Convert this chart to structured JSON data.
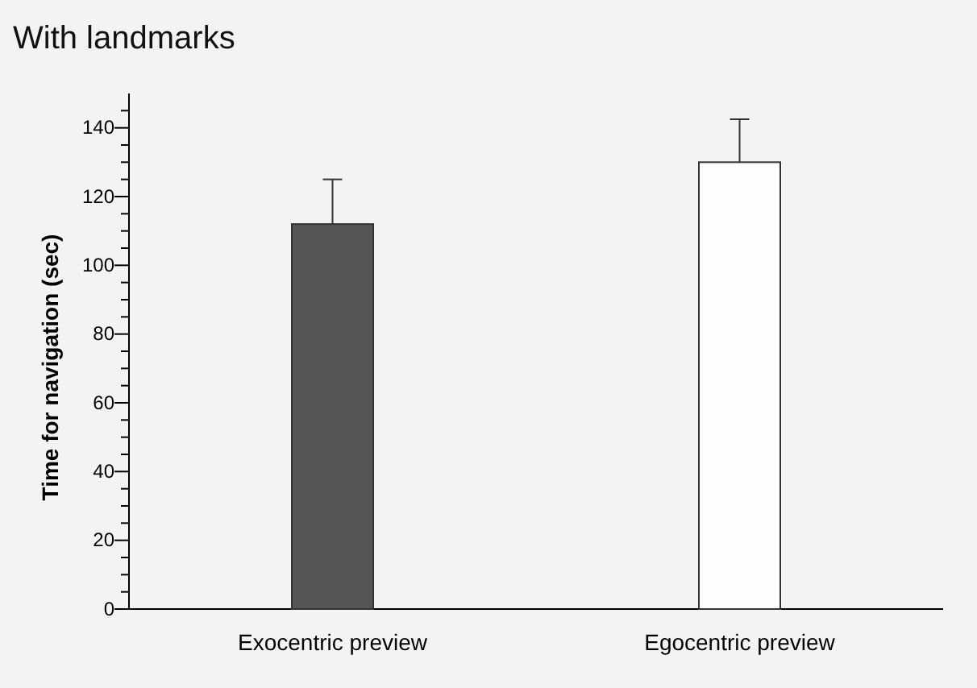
{
  "chart_data": {
    "type": "bar",
    "title": "With landmarks",
    "ylabel": "Time for navigation (sec)",
    "categories": [
      "Exocentric preview",
      "Egocentric preview"
    ],
    "values": [
      112,
      130
    ],
    "colors": [
      "#555555",
      "#fdfdfd"
    ],
    "errors": [
      [
        112,
        125
      ],
      [
        130,
        142.5
      ]
    ],
    "ylim": [
      0,
      150
    ],
    "yticks": [
      0,
      {
        "value": 5,
        "label": null
      },
      {
        "value": 10,
        "label": null
      },
      {
        "value": 15,
        "label": null
      },
      20,
      {
        "value": 25,
        "label": null
      },
      {
        "value": 30,
        "label": null
      },
      {
        "value": 35,
        "label": null
      },
      40,
      {
        "value": 45,
        "label": null
      },
      {
        "value": 50,
        "label": null
      },
      {
        "value": 55,
        "label": null
      },
      60,
      {
        "value": 65,
        "label": null
      },
      {
        "value": 70,
        "label": null
      },
      {
        "value": 75,
        "label": null
      },
      80,
      {
        "value": 85,
        "label": null
      },
      {
        "value": 90,
        "label": null
      },
      {
        "value": 95,
        "label": null
      },
      100,
      {
        "value": 105,
        "label": null
      },
      {
        "value": 110,
        "label": null
      },
      {
        "value": 115,
        "label": null
      },
      120,
      {
        "value": 125,
        "label": null
      },
      {
        "value": 130,
        "label": null
      },
      {
        "value": 135,
        "label": null
      },
      140,
      {
        "value": 145,
        "label": null
      }
    ]
  }
}
